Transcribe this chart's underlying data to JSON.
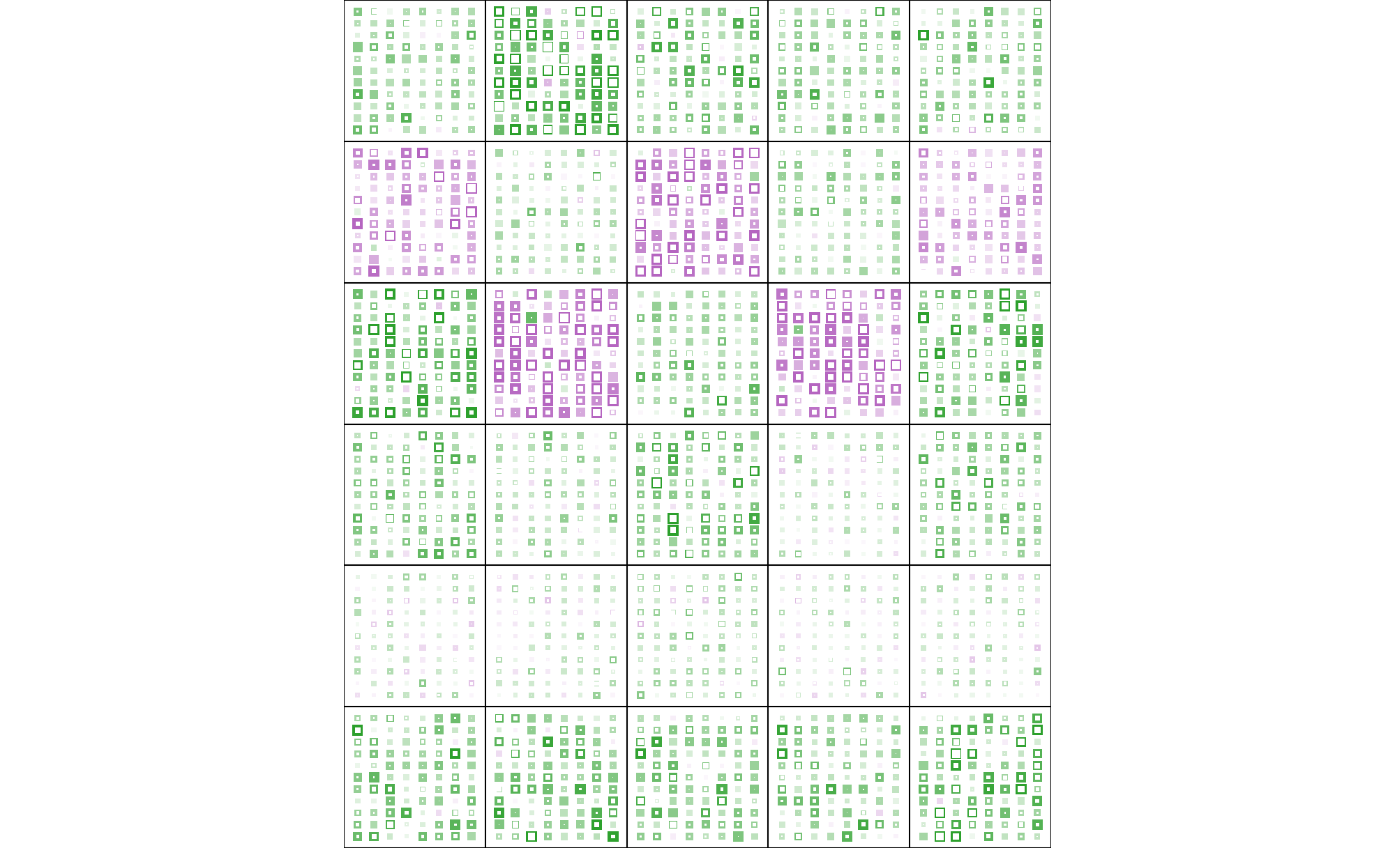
{
  "n_panel_cols": 5,
  "n_panel_rows": 6,
  "ncols_sq": 8,
  "nrows_sq": 11,
  "background_color": "#ffffff",
  "green_color": "#2ca02c",
  "purple_color": "#b565c0",
  "fig_width": 20.0,
  "fig_height": 12.17,
  "panel_means": [
    [
      0.25,
      0.55,
      0.35,
      0.28,
      0.28
    ],
    [
      -0.4,
      0.18,
      -0.55,
      0.2,
      -0.3
    ],
    [
      0.45,
      -0.6,
      0.25,
      -0.55,
      0.42
    ],
    [
      0.3,
      0.18,
      0.38,
      0.08,
      0.28
    ],
    [
      0.1,
      0.1,
      0.18,
      0.05,
      0.1
    ],
    [
      0.32,
      0.4,
      0.32,
      0.3,
      0.38
    ]
  ],
  "panel_sds": [
    [
      0.2,
      0.22,
      0.18,
      0.2,
      0.2
    ],
    [
      0.22,
      0.18,
      0.22,
      0.18,
      0.22
    ],
    [
      0.2,
      0.22,
      0.18,
      0.22,
      0.2
    ],
    [
      0.15,
      0.14,
      0.15,
      0.12,
      0.15
    ],
    [
      0.1,
      0.1,
      0.1,
      0.08,
      0.1
    ],
    [
      0.18,
      0.2,
      0.18,
      0.18,
      0.18
    ]
  ],
  "seeds": [
    [
      10,
      20,
      30,
      40,
      50
    ],
    [
      60,
      70,
      80,
      90,
      100
    ],
    [
      110,
      120,
      130,
      140,
      150
    ],
    [
      160,
      170,
      180,
      190,
      200
    ],
    [
      210,
      220,
      230,
      240,
      250
    ],
    [
      260,
      270,
      280,
      290,
      300
    ]
  ]
}
